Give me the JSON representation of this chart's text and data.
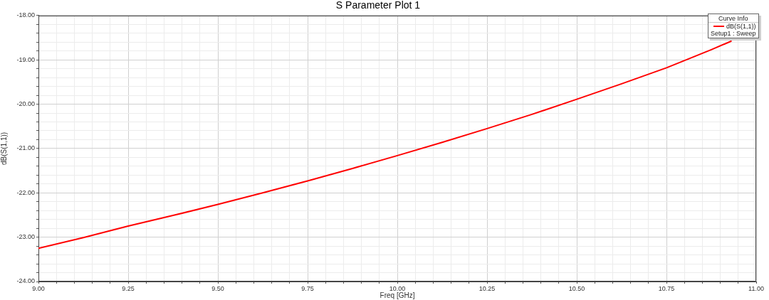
{
  "chart_data": {
    "type": "line",
    "title": "S Parameter Plot 1",
    "xlabel": "Freq [GHz]",
    "ylabel": "dB(S(1,1))",
    "legend_title": "Curve Info",
    "annotations": [
      "Setup1 : Sweep"
    ],
    "x": [
      9,
      9.125,
      9.25,
      9.375,
      9.5,
      9.625,
      9.75,
      9.875,
      10,
      10.125,
      10.25,
      10.375,
      10.5,
      10.625,
      10.75,
      10.875,
      10.93
    ],
    "series": [
      {
        "name": "dB(S(1,1))",
        "color": "#ff0000",
        "values": [
          -23.25,
          -23.01,
          -22.75,
          -22.51,
          -22.26,
          -22.0,
          -21.73,
          -21.45,
          -21.16,
          -20.86,
          -20.55,
          -20.23,
          -19.89,
          -19.54,
          -19.18,
          -18.77,
          -18.58
        ]
      }
    ],
    "xlim": [
      9,
      11
    ],
    "ylim": [
      -24,
      -18
    ],
    "xticks": [
      {
        "value": 9,
        "label": "9.00"
      },
      {
        "value": 9.05,
        "label": null
      },
      {
        "value": 9.1,
        "label": null
      },
      {
        "value": 9.15,
        "label": null
      },
      {
        "value": 9.2,
        "label": null
      },
      {
        "value": 9.25,
        "label": "9.25"
      },
      {
        "value": 9.3,
        "label": null
      },
      {
        "value": 9.35,
        "label": null
      },
      {
        "value": 9.4,
        "label": null
      },
      {
        "value": 9.45,
        "label": null
      },
      {
        "value": 9.5,
        "label": "9.50"
      },
      {
        "value": 9.55,
        "label": null
      },
      {
        "value": 9.6,
        "label": null
      },
      {
        "value": 9.65,
        "label": null
      },
      {
        "value": 9.7,
        "label": null
      },
      {
        "value": 9.75,
        "label": "9.75"
      },
      {
        "value": 9.8,
        "label": null
      },
      {
        "value": 9.85,
        "label": null
      },
      {
        "value": 9.9,
        "label": null
      },
      {
        "value": 9.95,
        "label": null
      },
      {
        "value": 10,
        "label": "10.00"
      },
      {
        "value": 10.05,
        "label": null
      },
      {
        "value": 10.1,
        "label": null
      },
      {
        "value": 10.15,
        "label": null
      },
      {
        "value": 10.2,
        "label": null
      },
      {
        "value": 10.25,
        "label": "10.25"
      },
      {
        "value": 10.3,
        "label": null
      },
      {
        "value": 10.35,
        "label": null
      },
      {
        "value": 10.4,
        "label": null
      },
      {
        "value": 10.45,
        "label": null
      },
      {
        "value": 10.5,
        "label": "10.50"
      },
      {
        "value": 10.55,
        "label": null
      },
      {
        "value": 10.6,
        "label": null
      },
      {
        "value": 10.65,
        "label": null
      },
      {
        "value": 10.7,
        "label": null
      },
      {
        "value": 10.75,
        "label": "10.75"
      },
      {
        "value": 10.8,
        "label": null
      },
      {
        "value": 10.85,
        "label": null
      },
      {
        "value": 10.9,
        "label": null
      },
      {
        "value": 10.95,
        "label": null
      },
      {
        "value": 11,
        "label": "11.00"
      }
    ],
    "yticks": [
      {
        "value": -24,
        "label": "-24.00"
      },
      {
        "value": -23.8,
        "label": null
      },
      {
        "value": -23.6,
        "label": null
      },
      {
        "value": -23.4,
        "label": null
      },
      {
        "value": -23.2,
        "label": null
      },
      {
        "value": -23,
        "label": "-23.00"
      },
      {
        "value": -22.8,
        "label": null
      },
      {
        "value": -22.6,
        "label": null
      },
      {
        "value": -22.4,
        "label": null
      },
      {
        "value": -22.2,
        "label": null
      },
      {
        "value": -22,
        "label": "-22.00"
      },
      {
        "value": -21.8,
        "label": null
      },
      {
        "value": -21.6,
        "label": null
      },
      {
        "value": -21.4,
        "label": null
      },
      {
        "value": -21.2,
        "label": null
      },
      {
        "value": -21,
        "label": "-21.00"
      },
      {
        "value": -20.8,
        "label": null
      },
      {
        "value": -20.6,
        "label": null
      },
      {
        "value": -20.4,
        "label": null
      },
      {
        "value": -20.2,
        "label": null
      },
      {
        "value": -20,
        "label": "-20.00"
      },
      {
        "value": -19.8,
        "label": null
      },
      {
        "value": -19.6,
        "label": null
      },
      {
        "value": -19.4,
        "label": null
      },
      {
        "value": -19.2,
        "label": null
      },
      {
        "value": -19,
        "label": "-19.00"
      },
      {
        "value": -18.8,
        "label": null
      },
      {
        "value": -18.6,
        "label": null
      },
      {
        "value": -18.4,
        "label": null
      },
      {
        "value": -18.2,
        "label": null
      },
      {
        "value": -18,
        "label": "-18.00"
      }
    ],
    "grid": true,
    "legend": "top right"
  }
}
